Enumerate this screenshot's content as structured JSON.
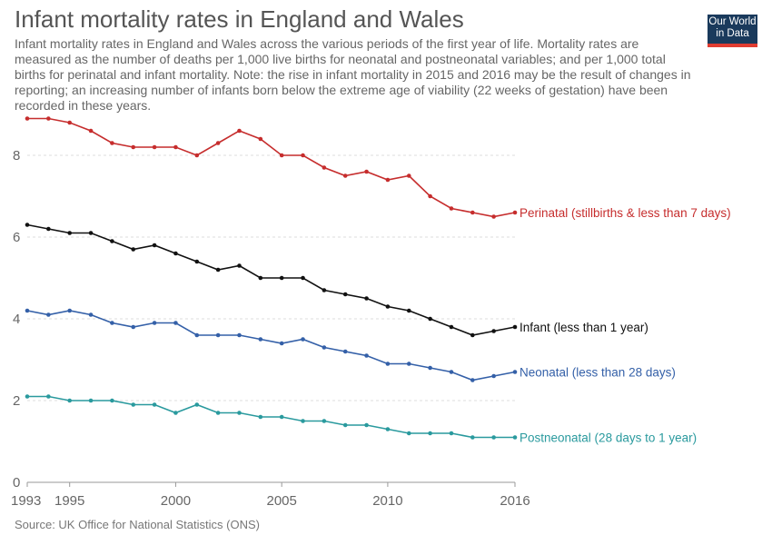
{
  "header": {
    "title": "Infant mortality rates in England and Wales",
    "subtitle": "Infant mortality rates in England and Wales across the various periods of the first year of life. Mortality rates are measured as the number of deaths per 1,000 live births for neonatal and postneonatal variables; and per 1,000 total births for perinatal and infant mortality. Note: the rise in infant mortality in 2015 and 2016 may be the result of changes in reporting; an increasing number of infants born below the extreme age of viability (22 weeks of gestation) have been recorded in these years."
  },
  "logo": {
    "line1": "Our World",
    "line2": "in Data"
  },
  "footer": {
    "source": "Source: UK Office for National Statistics (ONS)"
  },
  "chart_data": {
    "type": "line",
    "title": "Infant mortality rates in England and Wales",
    "xlabel": "",
    "ylabel": "",
    "xlim": [
      1993,
      2016
    ],
    "ylim": [
      0,
      9
    ],
    "x_ticks": [
      1993,
      1995,
      2000,
      2005,
      2010,
      2016
    ],
    "y_ticks": [
      0,
      2,
      4,
      6,
      8
    ],
    "grid": true,
    "x": [
      1993,
      1994,
      1995,
      1996,
      1997,
      1998,
      1999,
      2000,
      2001,
      2002,
      2003,
      2004,
      2005,
      2006,
      2007,
      2008,
      2009,
      2010,
      2011,
      2012,
      2013,
      2014,
      2015,
      2016
    ],
    "series": [
      {
        "name": "Perinatal (stillbirths & less than 7 days)",
        "color": "#c62d2d",
        "values": [
          8.9,
          8.9,
          8.8,
          8.6,
          8.3,
          8.2,
          8.2,
          8.2,
          8.0,
          8.3,
          8.6,
          8.4,
          8.0,
          8.0,
          7.7,
          7.5,
          7.6,
          7.4,
          7.5,
          7.0,
          6.7,
          6.6,
          6.5,
          6.6
        ]
      },
      {
        "name": "Infant (less than 1 year)",
        "color": "#111111",
        "values": [
          6.3,
          6.2,
          6.1,
          6.1,
          5.9,
          5.7,
          5.8,
          5.6,
          5.4,
          5.2,
          5.3,
          5.0,
          5.0,
          5.0,
          4.7,
          4.6,
          4.5,
          4.3,
          4.2,
          4.0,
          3.8,
          3.6,
          3.7,
          3.8
        ]
      },
      {
        "name": "Neonatal (less than 28 days)",
        "color": "#3460a8",
        "values": [
          4.2,
          4.1,
          4.2,
          4.1,
          3.9,
          3.8,
          3.9,
          3.9,
          3.6,
          3.6,
          3.6,
          3.5,
          3.4,
          3.5,
          3.3,
          3.2,
          3.1,
          2.9,
          2.9,
          2.8,
          2.7,
          2.5,
          2.6,
          2.7
        ]
      },
      {
        "name": "Postneonatal (28 days to 1 year)",
        "color": "#2a9a9e",
        "values": [
          2.1,
          2.1,
          2.0,
          2.0,
          2.0,
          1.9,
          1.9,
          1.7,
          1.9,
          1.7,
          1.7,
          1.6,
          1.6,
          1.5,
          1.5,
          1.4,
          1.4,
          1.3,
          1.2,
          1.2,
          1.2,
          1.1,
          1.1,
          1.1
        ]
      }
    ]
  }
}
